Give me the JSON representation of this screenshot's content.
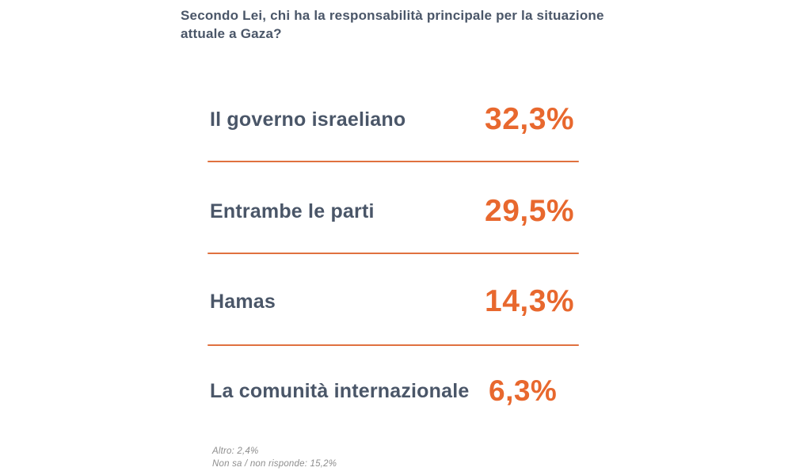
{
  "header": {
    "question_lines": [
      "Secondo Lei, chi ha la responsabilità principale per la situazione",
      "attuale a Gaza?"
    ]
  },
  "rows": [
    {
      "label": "Il governo israeliano",
      "value": "32,3%"
    },
    {
      "label": "Entrambe le parti",
      "value": "29,5%"
    },
    {
      "label": "Hamas",
      "value": "14,3%"
    },
    {
      "label": "La comunità internazionale",
      "value": "6,3%"
    }
  ],
  "footnotes": [
    "Altro: 2,4%",
    "Non sa / non risponde: 15,2%"
  ],
  "colors": {
    "accent_orange": "#e8682e",
    "divider_orange": "#e0713f",
    "text_dark": "#4a5668",
    "footnote_gray": "#8e8e8e",
    "background": "#ffffff"
  },
  "chart_data": {
    "type": "table",
    "title": "Secondo Lei, chi ha la responsabilità principale per la situazione attuale a Gaza?",
    "categories": [
      "Il governo israeliano",
      "Entrambe le parti",
      "Hamas",
      "La comunità internazionale",
      "Altro",
      "Non sa / non risponde"
    ],
    "values": [
      32.3,
      29.5,
      14.3,
      6.3,
      2.4,
      15.2
    ],
    "value_labels": [
      "32,3%",
      "29,5%",
      "14,3%",
      "6,3%",
      "2,4%",
      "15,2%"
    ],
    "unit": "%",
    "legend_position": "none",
    "grid": false
  }
}
